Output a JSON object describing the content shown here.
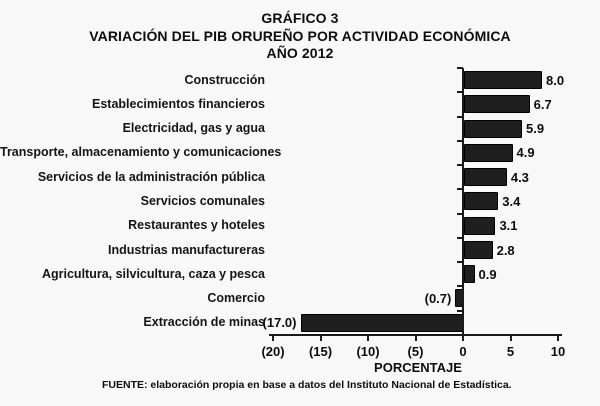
{
  "title": {
    "line1": "GRÁFICO 3",
    "line2": "VARIACIÓN DEL PIB ORUREÑO POR ACTIVIDAD ECONÓMICA",
    "line3": "AÑO 2012"
  },
  "chart_data": {
    "type": "bar",
    "orientation": "horizontal",
    "title": "GRÁFICO 3 — VARIACIÓN DEL PIB ORUREÑO POR ACTIVIDAD ECONÓMICA — AÑO 2012",
    "categories": [
      "Construcción",
      "Establecimientos financieros",
      "Electricidad, gas y agua",
      "Transporte, almacenamiento y comunicaciones",
      "Servicios de la administración pública",
      "Servicios comunales",
      "Restaurantes y hoteles",
      "Industrias manufactureras",
      "Agricultura, silvicultura, caza y pesca",
      "Comercio",
      "Extracción de minas"
    ],
    "values": [
      8.0,
      6.7,
      5.9,
      4.9,
      4.3,
      3.4,
      3.1,
      2.8,
      0.9,
      -0.7,
      -17.0
    ],
    "value_labels": [
      "8.0",
      "6.7",
      "5.9",
      "4.9",
      "4.3",
      "3.4",
      "3.1",
      "2.8",
      "0.9",
      "(0.7)",
      "(17.0)"
    ],
    "xlabel": "PORCENTAJE",
    "xlim": [
      -20,
      10
    ],
    "x_ticks": [
      -20,
      -15,
      -10,
      -5,
      0,
      5,
      10
    ],
    "x_tick_labels": [
      "(20)",
      "(15)",
      "(10)",
      "(5)",
      "0",
      "5",
      "10"
    ],
    "grid": false,
    "legend_position": "none",
    "bar_color": "#1f1f1f",
    "background_color": "#f8f8f8"
  },
  "source": "FUENTE:  elaboración propia en base a datos del Instituto Nacional de Estadística."
}
